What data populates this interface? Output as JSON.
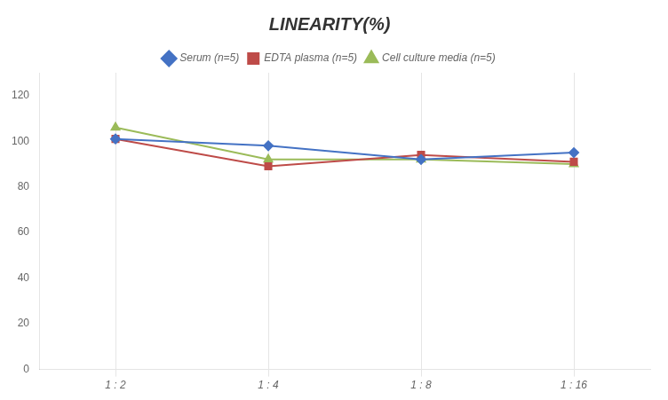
{
  "chart_data": {
    "type": "line",
    "title": "LINEARITY(%)",
    "categories": [
      "1 : 2",
      "1 : 4",
      "1 : 8",
      "1 : 16"
    ],
    "series": [
      {
        "name": "Serum (n=5)",
        "color": "#4472C4",
        "marker": "diamond",
        "values": [
          101,
          98,
          92,
          95
        ]
      },
      {
        "name": "EDTA plasma (n=5)",
        "color": "#BE4B48",
        "marker": "square",
        "values": [
          101,
          89,
          94,
          91
        ]
      },
      {
        "name": "Cell culture media (n=5)",
        "color": "#9BBB59",
        "marker": "triangle",
        "values": [
          106,
          92,
          92,
          90
        ]
      }
    ],
    "ylim": [
      0,
      130
    ],
    "yticks": [
      0,
      20,
      40,
      60,
      80,
      100,
      120
    ],
    "grid": "x",
    "legend": "top"
  }
}
